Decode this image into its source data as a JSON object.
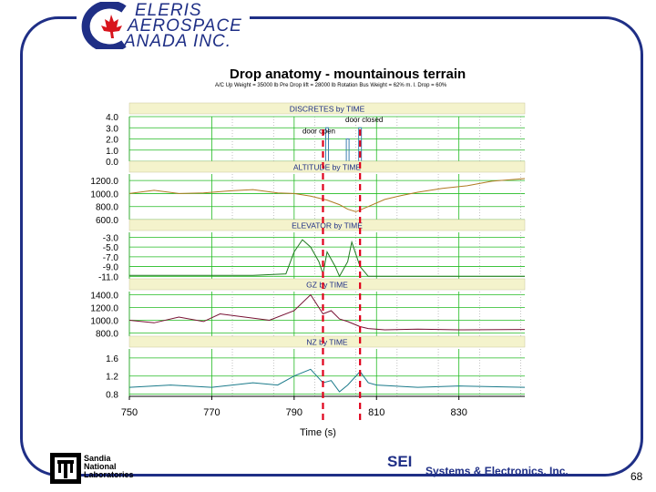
{
  "header": {
    "logo_line1": "ELERIS",
    "logo_line2": "AEROSPACE",
    "logo_line3": "ANADA  INC.",
    "logo_c": "C"
  },
  "footer": {
    "sandia_line1": "Sandia",
    "sandia_line2": "National",
    "sandia_line3": "Laboratories",
    "sei": "SEI",
    "sei_full": "Systems & Electronics, Inc.",
    "page_number": "68"
  },
  "colors": {
    "frame": "#1f2f86",
    "panel_header": "#f4f3cc",
    "grid": "#22bb22",
    "marker": "#e0001b",
    "altitude": "#b07a22",
    "elevator": "#207a20",
    "gz": "#771133",
    "nz": "#1a7a8a",
    "discretes": "#3f7fb0"
  },
  "chart_data": {
    "type": "line",
    "title": "Drop anatomy - mountainous terrain",
    "subtitle": "A/C Up Weight = 35000 lb   Pre Drop lift = 28000 lb   Rotation Bus Weight = 62% m. l.   Drop = 60%",
    "xlabel": "Time (s)",
    "xlim": [
      750,
      846
    ],
    "x_ticks": [
      "750",
      "770",
      "790",
      "810",
      "830"
    ],
    "x_tick_values": [
      750,
      770,
      790,
      810,
      830
    ],
    "vertical_markers": [
      797,
      806
    ],
    "panels": [
      {
        "title": "DISCRETES by TIME",
        "ylim": [
          0,
          4
        ],
        "y_ticks": [
          "4.0",
          "3.0",
          "2.0",
          "1.0",
          "0.0"
        ],
        "y_tick_values": [
          4,
          3,
          2,
          1,
          0
        ],
        "annotations": [
          {
            "text": "door closed",
            "x": 807,
            "y": 3.5
          },
          {
            "text": "door open",
            "x": 796,
            "y": 2.5
          }
        ],
        "series": [
          {
            "type": "pulses",
            "pulses": [
              [
                798,
                3
              ],
              [
                803,
                2
              ],
              [
                806,
                3
              ]
            ]
          }
        ]
      },
      {
        "title": "ALTITUDE by TIME",
        "ylim": [
          600,
          1300
        ],
        "y_ticks": [
          "1200.0",
          "1000.0",
          "800.0",
          "600.0"
        ],
        "y_tick_values": [
          1200,
          1000,
          800,
          600
        ],
        "series": [
          {
            "x": [
              750,
              756,
              762,
              768,
              774,
              780,
              786,
              790,
              794,
              798,
              801,
              803,
              805,
              808,
              812,
              816,
              820,
              826,
              832,
              838,
              846
            ],
            "y": [
              1000,
              1050,
              1000,
              1010,
              1040,
              1060,
              1010,
              1000,
              960,
              900,
              830,
              760,
              720,
              800,
              910,
              970,
              1020,
              1080,
              1120,
              1190,
              1230
            ]
          }
        ]
      },
      {
        "title": "ELEVATOR by TIME",
        "ylim": [
          -11.5,
          -2
        ],
        "y_ticks": [
          "-3.0",
          "-5.0",
          "-7.0",
          "-9.0",
          "-11.0"
        ],
        "y_tick_values": [
          -3,
          -5,
          -7,
          -9,
          -11
        ],
        "series": [
          {
            "x": [
              750,
              760,
              770,
              780,
              788,
              790,
              792,
              794,
              796,
              797,
              798,
              800,
              801,
              803,
              804,
              806,
              808,
              810,
              820,
              830,
              840,
              846
            ],
            "y": [
              -10.8,
              -10.8,
              -10.8,
              -10.8,
              -10.5,
              -6,
              -3.5,
              -5,
              -8,
              -10.5,
              -6,
              -9,
              -11,
              -8,
              -4,
              -9,
              -11,
              -11,
              -11,
              -11,
              -11,
              -11
            ]
          }
        ]
      },
      {
        "title": "GZ by TIME",
        "ylim": [
          750,
          1450
        ],
        "y_ticks": [
          "1400.0",
          "1200.0",
          "1000.0",
          "800.0"
        ],
        "y_tick_values": [
          1400,
          1200,
          1000,
          800
        ],
        "series": [
          {
            "x": [
              750,
              756,
              762,
              768,
              772,
              778,
              784,
              790,
              794,
              797,
              799,
              801,
              803,
              806,
              808,
              812,
              820,
              830,
              846
            ],
            "y": [
              1000,
              960,
              1050,
              980,
              1100,
              1050,
              1000,
              1150,
              1400,
              1100,
              1150,
              1020,
              980,
              900,
              870,
              850,
              860,
              850,
              855
            ]
          }
        ]
      },
      {
        "title": "NZ by TIME",
        "ylim": [
          0.75,
          1.8
        ],
        "y_ticks": [
          "1.6",
          "1.2",
          "0.8"
        ],
        "y_tick_values": [
          1.6,
          1.2,
          0.8
        ],
        "series": [
          {
            "x": [
              750,
              760,
              770,
              780,
              786,
              790,
              794,
              797,
              799,
              801,
              803,
              806,
              808,
              810,
              820,
              830,
              846
            ],
            "y": [
              0.95,
              1.0,
              0.95,
              1.05,
              1.0,
              1.2,
              1.35,
              1.05,
              1.1,
              0.85,
              1.0,
              1.3,
              1.05,
              1.0,
              0.95,
              0.98,
              0.95
            ]
          }
        ]
      }
    ]
  }
}
